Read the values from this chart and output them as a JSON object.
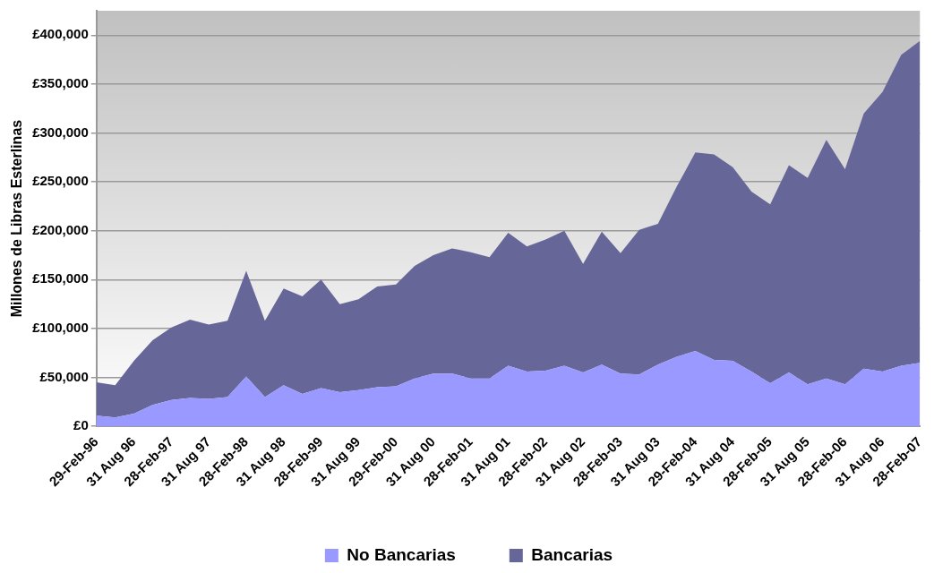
{
  "chart_data": {
    "type": "area",
    "stacked": true,
    "ylabel": "Millones de Libras Esterlinas",
    "categories": [
      "29-Feb-96",
      null,
      "31 Aug 96",
      null,
      "28-Feb-97",
      null,
      "31 Aug 97",
      null,
      "28-Feb-98",
      null,
      "31 Aug 98",
      null,
      "28-Feb-99",
      null,
      "31 Aug 99",
      null,
      "29-Feb-00",
      null,
      "31 Aug 00",
      null,
      "28-Feb-01",
      null,
      "31 Aug 01",
      null,
      "28-Feb-02",
      null,
      "31 Aug 02",
      null,
      "28-Feb-03",
      null,
      "31 Aug 03",
      null,
      "29-Feb-04",
      null,
      "31 Aug 04",
      null,
      "28-Feb-05",
      null,
      "31 Aug 05",
      null,
      "28-Feb-06",
      null,
      "31 Aug 06",
      null,
      "28-Feb-07"
    ],
    "series": [
      {
        "name": "No Bancarias",
        "color": "#9999ff",
        "values": [
          11000,
          9000,
          13000,
          22000,
          27000,
          29000,
          28000,
          30000,
          51000,
          30000,
          42000,
          33000,
          39000,
          35000,
          37000,
          40000,
          41000,
          49000,
          54000,
          54000,
          49000,
          49000,
          62000,
          56000,
          57000,
          62000,
          55000,
          63000,
          54000,
          53000,
          63000,
          71000,
          77000,
          68000,
          67000,
          56000,
          44000,
          55000,
          43000,
          49000,
          43000,
          59000,
          56000,
          62000,
          65000
        ]
      },
      {
        "name": "Bancarias",
        "color": "#666699",
        "values": [
          34000,
          33000,
          54000,
          66000,
          74000,
          80000,
          76000,
          78000,
          108000,
          78000,
          99000,
          100000,
          111000,
          90000,
          93000,
          103000,
          104000,
          115000,
          121000,
          128000,
          129000,
          124000,
          136000,
          128000,
          134000,
          138000,
          111000,
          136000,
          123000,
          148000,
          144000,
          174000,
          203000,
          210000,
          198000,
          184000,
          183000,
          212000,
          211000,
          244000,
          220000,
          261000,
          286000,
          318000,
          329000
        ]
      }
    ],
    "ylim": [
      0,
      425000
    ],
    "yticks": [
      {
        "value": 0,
        "label": "£0"
      },
      {
        "value": 50000,
        "label": "£50,000"
      },
      {
        "value": 100000,
        "label": "£100,000"
      },
      {
        "value": 150000,
        "label": "£150,000"
      },
      {
        "value": 200000,
        "label": "£200,000"
      },
      {
        "value": 250000,
        "label": "£250,000"
      },
      {
        "value": 300000,
        "label": "£300,000"
      },
      {
        "value": 350000,
        "label": "£350,000"
      },
      {
        "value": 400000,
        "label": "£400,000"
      }
    ],
    "grid": "y",
    "legend": "bottom"
  }
}
